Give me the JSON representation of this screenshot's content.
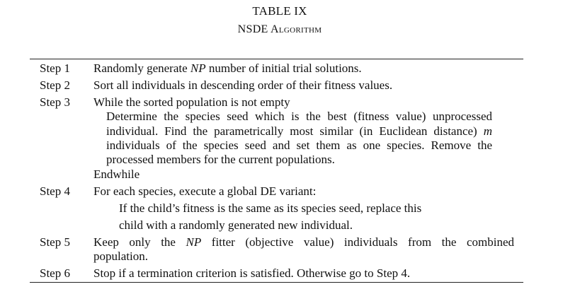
{
  "table": {
    "label": "TABLE IX",
    "caption": "NSDE Algorithm"
  },
  "steps": {
    "s1": {
      "label": "Step 1",
      "pre": "Randomly generate ",
      "var": "NP",
      "post": " number of initial trial solutions."
    },
    "s2": {
      "label": "Step 2",
      "text": "Sort all individuals in descending order of their fitness values."
    },
    "s3": {
      "label": "Step 3",
      "line1": "While the sorted population is not empty",
      "line2": "Determine the species seed which is the best (fitness value) unprocessed",
      "line3_pre": "individual. Find the parametrically most similar (in Euclidean distance) ",
      "line3_var": "m",
      "line4": "individuals of the species seed and set them as one species. Remove the",
      "line5": "processed members for the current populations.",
      "line6": "Endwhile"
    },
    "s4": {
      "label": "Step 4",
      "line1": "For each species, execute a global DE variant:",
      "line2": "If the child’s fitness is the same as its species seed, replace this",
      "line3": "child with a randomly generated new individual."
    },
    "s5": {
      "label": "Step 5",
      "line1_pre": "Keep only the ",
      "line1_var": "NP",
      "line1_post": " fitter (objective value) individuals from the combined",
      "line2": "population."
    },
    "s6": {
      "label": "Step 6",
      "text": "Stop if a termination criterion is satisfied. Otherwise go to Step 4."
    }
  }
}
